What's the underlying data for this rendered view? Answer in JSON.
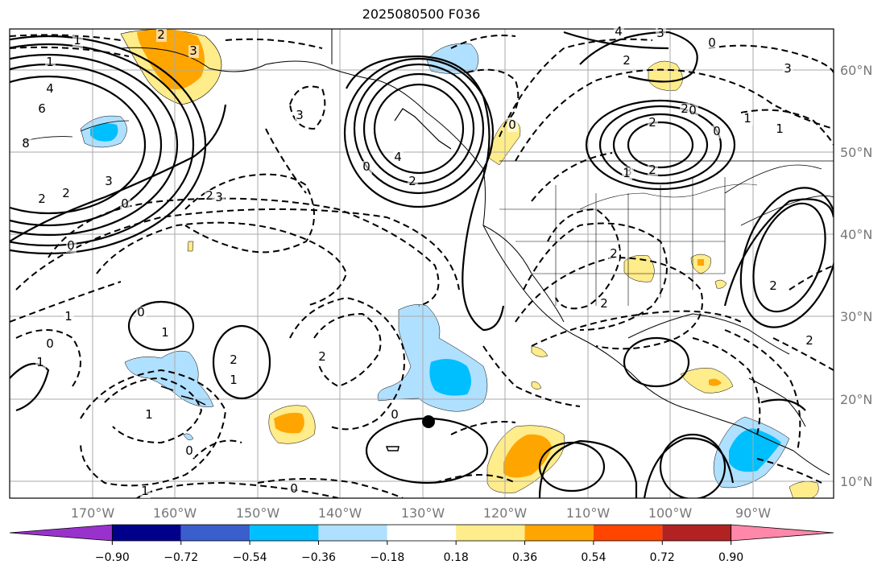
{
  "title": "2025080500 F036",
  "latitude_labels": [
    "60°N",
    "50°N",
    "40°N",
    "30°N",
    "20°N",
    "10°N"
  ],
  "longitude_labels": [
    "170°W",
    "160°W",
    "150°W",
    "140°W",
    "130°W",
    "120°W",
    "110°W",
    "100°W",
    "90°W"
  ],
  "colorbar": {
    "tick_labels": [
      "−0.90",
      "−0.72",
      "−0.54",
      "−0.36",
      "−0.18",
      "0.18",
      "0.36",
      "0.54",
      "0.72",
      "0.90"
    ],
    "colors": [
      "#9932cc",
      "#00008b",
      "#3a5fcd",
      "#00bfff",
      "#b0e0ff",
      "#ffffff",
      "#ffec8b",
      "#ffa500",
      "#ff4500",
      "#b22222",
      "#ff88aa"
    ]
  },
  "contour_labels": [
    {
      "text": "1"
    },
    {
      "text": "1"
    },
    {
      "text": "4"
    },
    {
      "text": "6"
    },
    {
      "text": "8"
    },
    {
      "text": "2"
    },
    {
      "text": "2"
    },
    {
      "text": "3"
    },
    {
      "text": "0"
    },
    {
      "text": "3"
    },
    {
      "text": "3"
    },
    {
      "text": "4"
    },
    {
      "text": "2"
    },
    {
      "text": "0"
    },
    {
      "text": "2"
    },
    {
      "text": "3"
    },
    {
      "text": "4"
    },
    {
      "text": "3"
    },
    {
      "text": "2"
    },
    {
      "text": "0"
    },
    {
      "text": "3"
    },
    {
      "text": "2"
    },
    {
      "text": "3"
    },
    {
      "text": "2"
    },
    {
      "text": "1"
    },
    {
      "text": "0"
    },
    {
      "text": "2"
    },
    {
      "text": "0"
    },
    {
      "text": "0"
    },
    {
      "text": "1"
    },
    {
      "text": "1"
    },
    {
      "text": "2"
    },
    {
      "text": "0"
    },
    {
      "text": "1"
    },
    {
      "text": "0"
    },
    {
      "text": "1"
    },
    {
      "text": "0"
    },
    {
      "text": "1"
    },
    {
      "text": "2"
    },
    {
      "text": "2"
    },
    {
      "text": "1"
    },
    {
      "text": "0"
    },
    {
      "text": "1"
    },
    {
      "text": "0"
    },
    {
      "text": "0"
    },
    {
      "text": "1"
    },
    {
      "text": "2"
    },
    {
      "text": "2"
    },
    {
      "text": "2"
    },
    {
      "text": "2"
    }
  ],
  "marker": "storm-center-dot"
}
